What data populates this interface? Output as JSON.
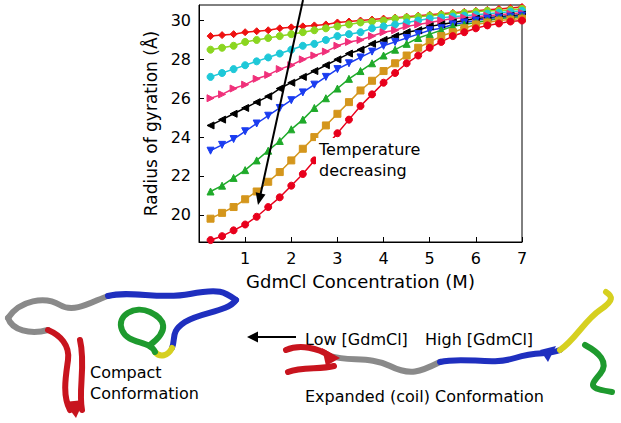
{
  "chart_data": {
    "type": "line",
    "xlabel": "GdmCl Concentration (M)",
    "ylabel": "Radius of gyration (Å)",
    "xlim": [
      0,
      7
    ],
    "ylim": [
      18.6,
      30.8
    ],
    "xticks": [
      1,
      2,
      3,
      4,
      5,
      6,
      7
    ],
    "yticks": [
      20,
      22,
      24,
      26,
      28,
      30
    ],
    "grid": false,
    "annotations": [
      "Temperature decreasing",
      "Low [GdmCl]",
      "High [GdmCl]",
      "Compact Conformation",
      "Expanded (coil) Conformation"
    ],
    "x": [
      0.25,
      0.5,
      0.75,
      1,
      1.25,
      1.5,
      1.75,
      2,
      2.25,
      2.5,
      2.75,
      3,
      3.25,
      3.5,
      3.75,
      4,
      4.25,
      4.5,
      4.75,
      5,
      5.25,
      5.5,
      5.75,
      6,
      6.25,
      6.5,
      6.75,
      7
    ],
    "series": [
      {
        "color": "#ee1111",
        "marker": "diamond",
        "values": [
          29.2,
          29.25,
          29.3,
          29.4,
          29.45,
          29.5,
          29.6,
          29.65,
          29.7,
          29.75,
          29.8,
          29.9,
          29.95,
          30.0,
          30.05,
          30.1,
          30.15,
          30.2,
          30.25,
          30.3,
          30.35,
          30.4,
          30.45,
          30.5,
          30.55,
          30.6,
          30.65,
          30.7
        ]
      },
      {
        "color": "#8bd620",
        "marker": "circle",
        "values": [
          28.5,
          28.6,
          28.7,
          28.9,
          29.0,
          29.1,
          29.2,
          29.3,
          29.4,
          29.5,
          29.6,
          29.7,
          29.8,
          29.9,
          29.95,
          30.0,
          30.1,
          30.15,
          30.2,
          30.25,
          30.3,
          30.35,
          30.4,
          30.45,
          30.5,
          30.5,
          30.55,
          30.6
        ]
      },
      {
        "color": "#1ec8d8",
        "marker": "circle",
        "values": [
          27.1,
          27.3,
          27.5,
          27.7,
          27.9,
          28.1,
          28.3,
          28.5,
          28.7,
          28.8,
          29.0,
          29.2,
          29.3,
          29.4,
          29.6,
          29.7,
          29.8,
          29.9,
          30.0,
          30.1,
          30.15,
          30.2,
          30.25,
          30.3,
          30.35,
          30.4,
          30.45,
          30.5
        ]
      },
      {
        "color": "#f0307a",
        "marker": "triangle-right",
        "values": [
          26.0,
          26.2,
          26.5,
          26.7,
          27.0,
          27.2,
          27.5,
          27.7,
          28.0,
          28.2,
          28.4,
          28.7,
          28.9,
          29.0,
          29.2,
          29.4,
          29.5,
          29.7,
          29.8,
          29.9,
          30.0,
          30.1,
          30.15,
          30.2,
          30.25,
          30.3,
          30.35,
          30.4
        ]
      },
      {
        "color": "#000000",
        "marker": "triangle-left",
        "values": [
          24.6,
          24.9,
          25.2,
          25.5,
          25.8,
          26.1,
          26.5,
          26.8,
          27.1,
          27.4,
          27.7,
          28.0,
          28.3,
          28.5,
          28.8,
          29.0,
          29.2,
          29.4,
          29.5,
          29.7,
          29.8,
          29.9,
          30.0,
          30.1,
          30.15,
          30.2,
          30.25,
          30.3
        ]
      },
      {
        "color": "#1a3cf0",
        "marker": "triangle-down",
        "values": [
          23.3,
          23.6,
          23.9,
          24.3,
          24.7,
          25.1,
          25.5,
          25.9,
          26.3,
          26.7,
          27.1,
          27.5,
          27.8,
          28.1,
          28.4,
          28.7,
          28.9,
          29.1,
          29.3,
          29.5,
          29.6,
          29.8,
          29.9,
          30.0,
          30.1,
          30.15,
          30.2,
          30.25
        ]
      },
      {
        "color": "#1faa2a",
        "marker": "triangle-up",
        "values": [
          21.2,
          21.5,
          21.9,
          22.3,
          22.8,
          23.3,
          23.8,
          24.4,
          24.9,
          25.5,
          26.0,
          26.5,
          27.0,
          27.4,
          27.8,
          28.2,
          28.5,
          28.8,
          29.1,
          29.3,
          29.5,
          29.7,
          29.8,
          29.9,
          30.0,
          30.1,
          30.15,
          30.2
        ]
      },
      {
        "color": "#d4961c",
        "marker": "square",
        "values": [
          19.8,
          20.1,
          20.4,
          20.8,
          21.2,
          21.7,
          22.2,
          22.8,
          23.4,
          24.0,
          24.6,
          25.2,
          25.8,
          26.4,
          26.9,
          27.4,
          27.8,
          28.2,
          28.6,
          28.9,
          29.2,
          29.4,
          29.6,
          29.8,
          29.9,
          30.0,
          30.05,
          30.1
        ]
      },
      {
        "color": "#e8001c",
        "marker": "circle",
        "values": [
          18.7,
          18.9,
          19.2,
          19.5,
          19.9,
          20.4,
          20.9,
          21.5,
          22.1,
          22.8,
          23.5,
          24.2,
          24.9,
          25.6,
          26.2,
          26.8,
          27.3,
          27.8,
          28.2,
          28.6,
          28.9,
          29.2,
          29.4,
          29.6,
          29.75,
          29.85,
          29.95,
          30.0
        ]
      }
    ]
  }
}
